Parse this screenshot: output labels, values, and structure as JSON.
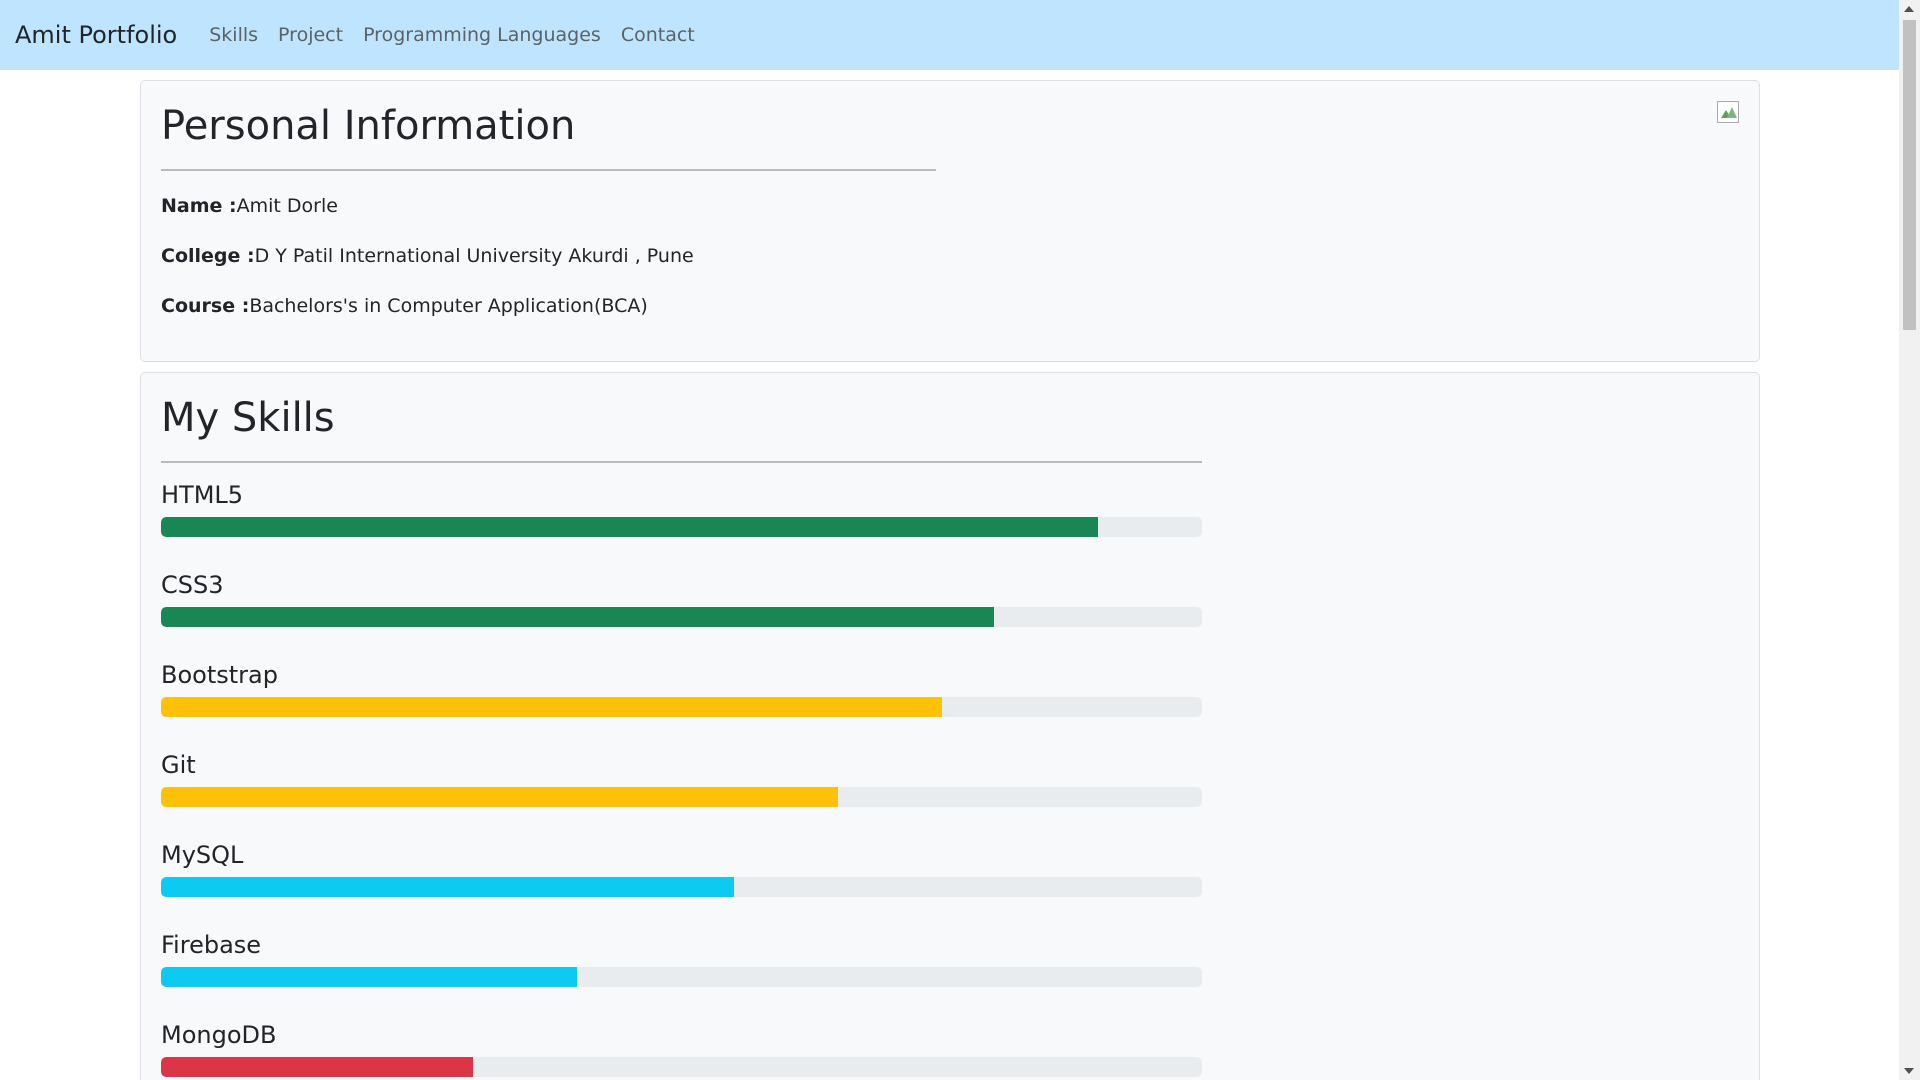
{
  "navbar": {
    "brand": "Amit Portfolio",
    "links": [
      "Skills",
      "Project",
      "Programming Languages",
      "Contact"
    ],
    "background": "#bee5fd"
  },
  "personal_info": {
    "title": "Personal Information",
    "rows": [
      {
        "label": "Name :",
        "value": "Amit Dorle"
      },
      {
        "label": "College :",
        "value": "D Y Patil International University Akurdi , Pune"
      },
      {
        "label": "Course :",
        "value": "Bachelors's in Computer Application(BCA)"
      }
    ],
    "image_icon": "broken-image-icon"
  },
  "skills": {
    "title": "My Skills",
    "items": [
      {
        "name": "HTML5",
        "percent": 90,
        "color": "#198754"
      },
      {
        "name": "CSS3",
        "percent": 80,
        "color": "#198754"
      },
      {
        "name": "Bootstrap",
        "percent": 75,
        "color": "#ffc107"
      },
      {
        "name": "Git",
        "percent": 65,
        "color": "#ffc107"
      },
      {
        "name": "MySQL",
        "percent": 55,
        "color": "#0dcaf0"
      },
      {
        "name": "Firebase",
        "percent": 40,
        "color": "#0dcaf0"
      },
      {
        "name": "MongoDB",
        "percent": 30,
        "color": "#dc3545"
      }
    ]
  }
}
